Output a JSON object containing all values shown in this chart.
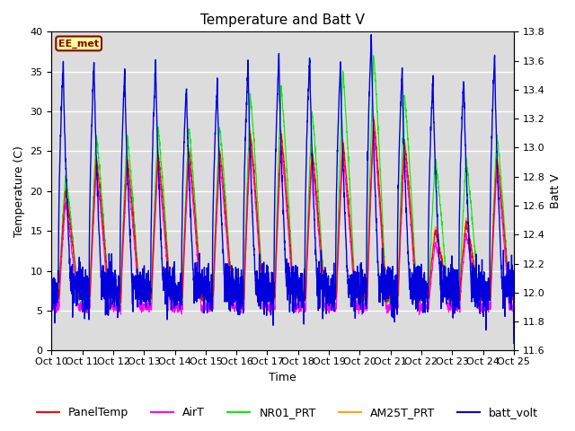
{
  "title": "Temperature and Batt V",
  "xlabel": "Time",
  "ylabel_left": "Temperature (C)",
  "ylabel_right": "Batt V",
  "xlim": [
    0,
    15
  ],
  "ylim_left": [
    0,
    40
  ],
  "ylim_right": [
    11.6,
    13.8
  ],
  "x_tick_labels": [
    "Oct 10",
    "Oct 11",
    "Oct 12",
    "Oct 13",
    "Oct 14",
    "Oct 15",
    "Oct 16",
    "Oct 17",
    "Oct 18",
    "Oct 19",
    "Oct 20",
    "Oct 21",
    "Oct 22",
    "Oct 23",
    "Oct 24",
    "Oct 25"
  ],
  "annotation_text": "EE_met",
  "annotation_color": "#8B0000",
  "annotation_bg": "#FFFF99",
  "series_colors": {
    "PanelTemp": "#FF0000",
    "AirT": "#FF00FF",
    "NR01_PRT": "#00EE00",
    "AM25T_PRT": "#FFA500",
    "batt_volt": "#0000DD"
  },
  "background_color": "#DCDCDC",
  "grid_color": "#FFFFFF",
  "title_fontsize": 11,
  "axis_fontsize": 9,
  "tick_fontsize": 8,
  "legend_fontsize": 9
}
